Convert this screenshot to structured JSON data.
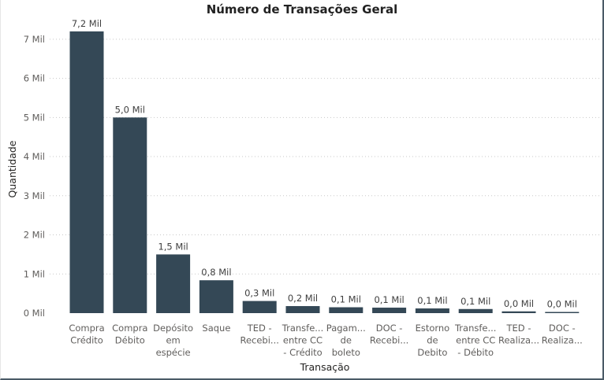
{
  "chart_data": {
    "type": "bar",
    "title": "Número de Transações Geral",
    "xlabel": "Transação",
    "ylabel": "Quantidade",
    "ylim": [
      0,
      7600
    ],
    "yticks": [
      {
        "value": 0,
        "label": "0 Mil"
      },
      {
        "value": 1000,
        "label": "1 Mil"
      },
      {
        "value": 2000,
        "label": "2 Mil"
      },
      {
        "value": 3000,
        "label": "3 Mil"
      },
      {
        "value": 4000,
        "label": "4 Mil"
      },
      {
        "value": 5000,
        "label": "5 Mil"
      },
      {
        "value": 6000,
        "label": "6 Mil"
      },
      {
        "value": 7000,
        "label": "7 Mil"
      }
    ],
    "grid": true,
    "categories": [
      [
        "Compra",
        "Crédito"
      ],
      [
        "Compra",
        "Débito"
      ],
      [
        "Depósito",
        "em",
        "espécie"
      ],
      [
        "Saque"
      ],
      [
        "TED -",
        "Recebi..."
      ],
      [
        "Transfe...",
        "entre CC",
        "- Crédito"
      ],
      [
        "Pagam...",
        "de",
        "boleto"
      ],
      [
        "DOC -",
        "Recebi..."
      ],
      [
        "Estorno",
        "de",
        "Debito"
      ],
      [
        "Transfe...",
        "entre CC",
        "- Débito"
      ],
      [
        "TED -",
        "Realiza..."
      ],
      [
        "DOC -",
        "Realiza..."
      ]
    ],
    "values": [
      7200,
      5000,
      1500,
      840,
      310,
      180,
      150,
      140,
      120,
      105,
      45,
      30
    ],
    "data_labels": [
      "7,2 Mil",
      "5,0 Mil",
      "1,5 Mil",
      "0,8 Mil",
      "0,3 Mil",
      "0,2 Mil",
      "0,1 Mil",
      "0,1 Mil",
      "0,1 Mil",
      "0,1 Mil",
      "0,0 Mil",
      "0,0 Mil"
    ],
    "bar_color": "#344856"
  }
}
